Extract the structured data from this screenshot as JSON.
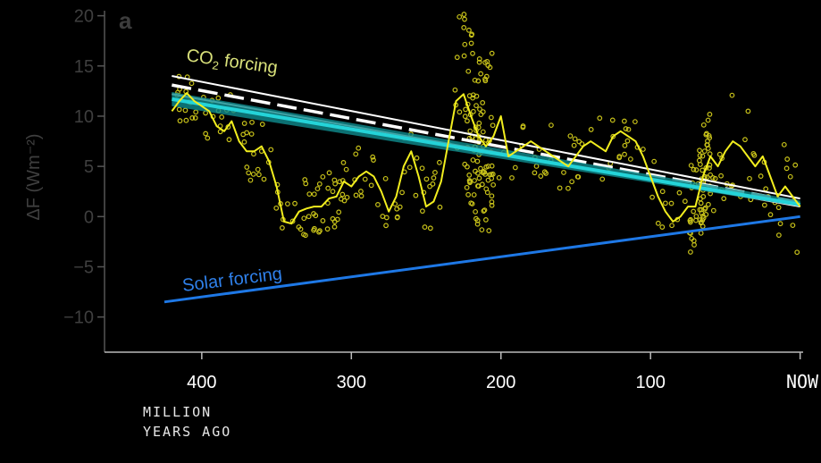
{
  "chart_data": {
    "type": "line",
    "panel_label": "a",
    "ylabel": "ΔF (Wm⁻²)",
    "ylim": [
      -13.5,
      20.5
    ],
    "xlim": [
      465,
      -2
    ],
    "x_ticks": [
      400,
      300,
      200,
      100,
      0
    ],
    "x_tick_labels": [
      "400",
      "300",
      "200",
      "100",
      "NOW"
    ],
    "y_ticks": [
      -10,
      -5,
      0,
      5,
      10,
      15,
      20
    ],
    "y_tick_labels": [
      "−10",
      "−5",
      "0",
      "5",
      "10",
      "15",
      "20"
    ],
    "xlabel_line1": "MILLION",
    "xlabel_line2": "YEARS AGO",
    "grid": false,
    "annotations": [
      {
        "id": "co2",
        "text_main": "CO",
        "text_sub": "2",
        "text_rest": " forcing",
        "color": "#d8e07a"
      },
      {
        "id": "solar",
        "text": "Solar forcing",
        "color": "#2f80ea"
      }
    ],
    "series": [
      {
        "name": "CO2 forcing",
        "style": "envelope",
        "color": "#ffffff",
        "x": [
          420,
          0
        ],
        "upper": [
          14.0,
          1.8
        ],
        "lower": [
          12.2,
          1.0
        ],
        "mid": [
          13.1,
          1.4
        ]
      },
      {
        "name": "total",
        "style": "band",
        "color": "#24d3d8",
        "x": [
          420,
          0
        ],
        "upper": [
          12.4,
          1.6
        ],
        "lower": [
          11.0,
          1.0
        ],
        "mid": [
          11.7,
          1.2
        ]
      },
      {
        "name": "Solar forcing",
        "color": "#1e78e6",
        "x": [
          425,
          0
        ],
        "y": [
          -8.5,
          0.0
        ]
      },
      {
        "name": "proxy",
        "color": "#f2ee1e",
        "x": [
          420,
          415,
          410,
          405,
          400,
          395,
          390,
          385,
          380,
          375,
          370,
          365,
          360,
          355,
          350,
          345,
          340,
          335,
          330,
          325,
          320,
          315,
          310,
          305,
          300,
          295,
          290,
          285,
          280,
          275,
          270,
          265,
          260,
          255,
          250,
          245,
          240,
          235,
          230,
          225,
          220,
          215,
          210,
          205,
          200,
          195,
          190,
          185,
          180,
          175,
          170,
          165,
          160,
          155,
          150,
          145,
          140,
          135,
          130,
          125,
          120,
          115,
          110,
          105,
          100,
          95,
          90,
          85,
          80,
          75,
          70,
          65,
          60,
          55,
          50,
          45,
          40,
          35,
          30,
          25,
          20,
          15,
          10,
          5,
          0
        ],
        "y": [
          10.5,
          11.5,
          12.3,
          11.5,
          11.0,
          10.5,
          9.0,
          8.5,
          9.5,
          7.5,
          6.5,
          6.5,
          7.0,
          5.5,
          3.0,
          -0.5,
          -0.7,
          0.5,
          0.8,
          1.0,
          1.0,
          1.8,
          2.0,
          3.5,
          3.0,
          4.0,
          4.5,
          4.0,
          2.5,
          0.5,
          2.0,
          5.0,
          6.5,
          4.0,
          1.0,
          1.5,
          3.5,
          7.5,
          11.5,
          12.2,
          10.0,
          8.0,
          7.0,
          8.0,
          10.0,
          6.0,
          6.5,
          7.0,
          7.5,
          7.0,
          6.5,
          6.0,
          5.5,
          5.0,
          6.0,
          7.0,
          7.5,
          7.0,
          6.5,
          8.0,
          8.5,
          8.0,
          7.5,
          6.0,
          4.0,
          2.0,
          0.5,
          -0.5,
          0.0,
          1.0,
          1.0,
          4.0,
          6.0,
          5.0,
          6.5,
          7.5,
          7.0,
          6.0,
          5.0,
          6.0,
          4.0,
          2.0,
          3.0,
          2.0,
          1.0
        ]
      }
    ]
  }
}
